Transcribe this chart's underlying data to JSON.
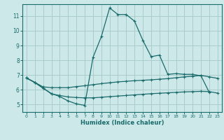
{
  "xlabel": "Humidex (Indice chaleur)",
  "bg_color": "#cce8e8",
  "grid_color": "#aacccc",
  "line_color": "#1a6b6b",
  "xlim": [
    -0.5,
    23.5
  ],
  "ylim": [
    4.5,
    11.8
  ],
  "xticks": [
    0,
    1,
    2,
    3,
    4,
    5,
    6,
    7,
    8,
    9,
    10,
    11,
    12,
    13,
    14,
    15,
    16,
    17,
    18,
    19,
    20,
    21,
    22,
    23
  ],
  "yticks": [
    5,
    6,
    7,
    8,
    9,
    10,
    11
  ],
  "curve1_x": [
    0,
    1,
    2,
    3,
    4,
    5,
    6,
    7,
    8,
    9,
    10,
    11,
    12,
    13,
    14,
    15,
    16,
    17,
    18,
    19,
    20,
    21,
    22
  ],
  "curve1_y": [
    6.8,
    6.5,
    6.1,
    5.75,
    5.55,
    5.25,
    5.05,
    4.95,
    8.2,
    9.6,
    11.55,
    11.1,
    11.1,
    10.65,
    9.35,
    8.25,
    8.35,
    7.05,
    7.1,
    7.05,
    7.05,
    6.95,
    5.82
  ],
  "curve2_x": [
    0,
    1,
    2,
    3,
    4,
    5,
    6,
    7,
    8,
    9,
    10,
    11,
    12,
    13,
    14,
    15,
    16,
    17,
    18,
    19,
    20,
    21,
    22,
    23
  ],
  "curve2_y": [
    6.8,
    6.5,
    6.2,
    6.15,
    6.15,
    6.15,
    6.22,
    6.28,
    6.35,
    6.42,
    6.48,
    6.54,
    6.58,
    6.62,
    6.65,
    6.68,
    6.72,
    6.76,
    6.82,
    6.88,
    6.92,
    6.98,
    6.88,
    6.78
  ],
  "curve3_x": [
    0,
    1,
    2,
    3,
    4,
    5,
    6,
    7,
    8,
    9,
    10,
    11,
    12,
    13,
    14,
    15,
    16,
    17,
    18,
    19,
    20,
    21,
    22,
    23
  ],
  "curve3_y": [
    6.8,
    6.5,
    6.12,
    5.72,
    5.62,
    5.52,
    5.48,
    5.46,
    5.46,
    5.5,
    5.54,
    5.58,
    5.62,
    5.66,
    5.7,
    5.74,
    5.77,
    5.8,
    5.83,
    5.86,
    5.88,
    5.9,
    5.88,
    5.78
  ]
}
